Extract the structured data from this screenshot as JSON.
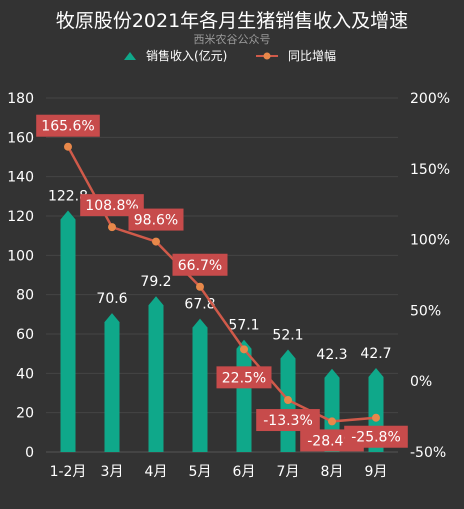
{
  "chart_data": {
    "type": "bar+line",
    "title": "牧原股份2021年各月生猪销售收入及增速",
    "subtitle": "西米农谷公众号",
    "categories": [
      "1-2月",
      "3月",
      "4月",
      "5月",
      "6月",
      "7月",
      "8月",
      "9月"
    ],
    "series": [
      {
        "name": "销售收入(亿元)",
        "type": "bar",
        "axis": "left",
        "values": [
          122.8,
          70.6,
          79.2,
          67.8,
          57.1,
          52.1,
          42.3,
          42.7
        ],
        "labels": [
          "122.8",
          "70.6",
          "79.2",
          "67.8",
          "57.1",
          "52.1",
          "42.3",
          "42.7"
        ]
      },
      {
        "name": "同比增幅",
        "type": "line",
        "axis": "right",
        "values": [
          165.6,
          108.8,
          98.6,
          66.7,
          22.5,
          -13.3,
          -28.4,
          -25.8
        ],
        "labels": [
          "165.6%",
          "108.8%",
          "98.6%",
          "66.7%",
          "22.5%",
          "-13.3%",
          "-28.4%",
          "-25.8%"
        ]
      }
    ],
    "y_left": {
      "ylim": [
        0,
        180
      ],
      "ticks": [
        "0",
        "20",
        "40",
        "60",
        "80",
        "100",
        "120",
        "140",
        "160",
        "180"
      ]
    },
    "y_right": {
      "ylim": [
        -50,
        200
      ],
      "ticks": [
        "-50%",
        "0%",
        "50%",
        "100%",
        "150%",
        "200%"
      ]
    },
    "legend_position": "top-center",
    "colors": {
      "bar": "#0fa88a",
      "line": "#d05a4a",
      "marker": "#e8884a",
      "label_box": "#c74b4b",
      "background": "#333333"
    }
  }
}
